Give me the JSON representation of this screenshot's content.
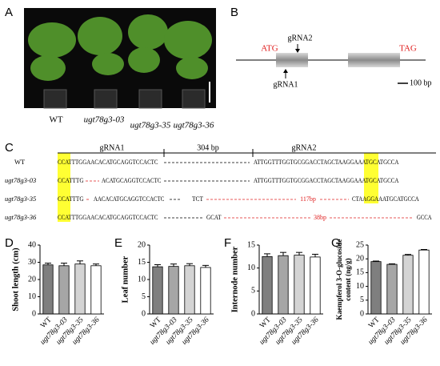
{
  "panel_labels": [
    "A",
    "B",
    "C",
    "D",
    "E",
    "F",
    "G"
  ],
  "panel_a": {
    "genotypes": [
      "WT",
      "ugt78g3-03",
      "ugt78g3-35",
      "ugt78g3-36"
    ]
  },
  "panel_b": {
    "start_codon": "ATG",
    "stop_codon": "TAG",
    "guides": [
      "gRNA1",
      "gRNA2"
    ],
    "scale": "100 bp"
  },
  "panel_c": {
    "header": [
      "gRNA1",
      "304 bp",
      "gRNA2"
    ],
    "rows": [
      {
        "name": "WT",
        "segments": [
          "CCATTTGGAACACATGCAGGTCCACTC",
          "ATTGGTTTGGTGCGGACCTAGCTAAGGAAATGCATGCCA"
        ]
      },
      {
        "name": "ugt78g3-03",
        "segments": [
          "CCATTTG",
          "ACATGCAGGTCCACTC",
          "ATTGGTTTGGTGCGGACCTAGCTAAGGAAATGCATGCCA"
        ]
      },
      {
        "name": "ugt78g3-35",
        "segments": [
          "CCATTTG",
          "AACACATGCAGGTCCACTC",
          "TCT",
          "117bp",
          "CTAAGGAAATGCATGCCA"
        ]
      },
      {
        "name": "ugt78g3-36",
        "segments": [
          "CCATTTGGAACACATGCAGGTCCACTC",
          "GCAT",
          "38bp",
          "GCCA"
        ]
      }
    ]
  },
  "chart_data": [
    {
      "type": "bar",
      "ylabel": "Shoot length (cm)",
      "categories": [
        "WT",
        "ugt78g3-03",
        "ugt78g3-35",
        "ugt78g3-36"
      ],
      "values": [
        28.5,
        28,
        29,
        28
      ],
      "errors": [
        1,
        1.5,
        1.8,
        1
      ],
      "colors": [
        "#7f7f7f",
        "#a6a6a6",
        "#d4d4d4",
        "#ffffff"
      ],
      "ylim": [
        0,
        40
      ],
      "yticks": [
        0,
        10,
        20,
        30,
        40
      ]
    },
    {
      "type": "bar",
      "ylabel": "Leaf number",
      "categories": [
        "WT",
        "ugt78g3-03",
        "ugt78g3-35",
        "ugt78g3-36"
      ],
      "values": [
        13.7,
        13.8,
        14,
        13.5
      ],
      "errors": [
        0.6,
        0.7,
        0.6,
        0.6
      ],
      "colors": [
        "#7f7f7f",
        "#a6a6a6",
        "#d4d4d4",
        "#ffffff"
      ],
      "ylim": [
        0,
        20
      ],
      "yticks": [
        0,
        5,
        10,
        15,
        20
      ]
    },
    {
      "type": "bar",
      "ylabel": "Internode number",
      "categories": [
        "WT",
        "ugt78g3-03",
        "ugt78g3-35",
        "ugt78g3-36"
      ],
      "values": [
        12.5,
        12.7,
        12.8,
        12.4
      ],
      "errors": [
        0.6,
        0.7,
        0.6,
        0.6
      ],
      "colors": [
        "#7f7f7f",
        "#a6a6a6",
        "#d4d4d4",
        "#ffffff"
      ],
      "ylim": [
        0,
        15
      ],
      "yticks": [
        0,
        5,
        10,
        15
      ]
    },
    {
      "type": "bar",
      "ylabel": [
        "Kaempferol 3-O-glucoside",
        "content (ng/g)"
      ],
      "categories": [
        "WT",
        "ugt78g3-03",
        "ugt78g3-35",
        "ugt78g3-36"
      ],
      "values": [
        19,
        18,
        21.3,
        23.2
      ],
      "errors": [
        0.2,
        0.2,
        0.3,
        0.2
      ],
      "colors": [
        "#7f7f7f",
        "#a6a6a6",
        "#d4d4d4",
        "#ffffff"
      ],
      "ylim": [
        0,
        25
      ],
      "yticks": [
        0,
        5,
        10,
        15,
        20,
        25
      ]
    }
  ]
}
